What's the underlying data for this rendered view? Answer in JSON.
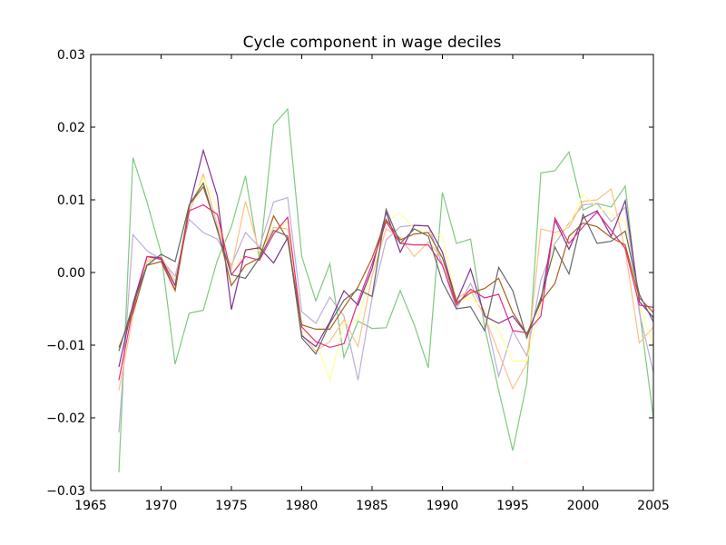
{
  "chart_data": {
    "type": "line",
    "title": "Cycle component in wage deciles",
    "xlabel": "",
    "ylabel": "",
    "xlim": [
      1965,
      2005
    ],
    "ylim": [
      -0.03,
      0.03
    ],
    "xticks": [
      1965,
      1970,
      1975,
      1980,
      1985,
      1990,
      1995,
      2000,
      2005
    ],
    "xtick_labels": [
      "1965",
      "1970",
      "1975",
      "1980",
      "1985",
      "1990",
      "1995",
      "2000",
      "2005"
    ],
    "yticks": [
      0.03,
      0.02,
      0.01,
      0.0,
      -0.01,
      -0.02,
      -0.03
    ],
    "ytick_labels": [
      "0.03",
      "0.02",
      "0.01",
      "0.00",
      "−0.01",
      "−0.02",
      "−0.03"
    ],
    "grid": false,
    "legend": "none",
    "x": [
      1967,
      1968,
      1969,
      1970,
      1971,
      1972,
      1973,
      1974,
      1975,
      1976,
      1977,
      1978,
      1979,
      1980,
      1981,
      1982,
      1983,
      1984,
      1985,
      1986,
      1987,
      1988,
      1989,
      1990,
      1991,
      1992,
      1993,
      1994,
      1995,
      1996,
      1997,
      1998,
      1999,
      2000,
      2001,
      2002,
      2003,
      2004,
      2005
    ],
    "series": [
      {
        "color": "#7fc97f",
        "values": [
          -0.0275,
          0.0158,
          0.0097,
          0.0027,
          -0.0126,
          -0.0056,
          -0.0052,
          0.0017,
          0.0063,
          0.0133,
          0.0017,
          0.0203,
          0.0225,
          0.0022,
          -0.0039,
          0.0012,
          -0.0117,
          -0.0067,
          -0.0077,
          -0.0076,
          -0.0025,
          -0.0072,
          -0.0131,
          0.011,
          0.004,
          0.0046,
          -0.0075,
          -0.0162,
          -0.0245,
          -0.0152,
          0.0137,
          0.014,
          0.0166,
          0.0086,
          0.0095,
          0.009,
          0.0119,
          -0.0051,
          -0.02
        ]
      },
      {
        "color": "#beaed4",
        "values": [
          -0.022,
          0.0052,
          0.003,
          0.0018,
          -0.0005,
          0.0073,
          0.0055,
          0.0046,
          0.001,
          0.0055,
          0.0035,
          0.0097,
          0.0103,
          -0.0054,
          -0.007,
          -0.0034,
          -0.006,
          -0.0148,
          -0.0035,
          0.0045,
          0.0063,
          0.0065,
          0.0064,
          0.001,
          -0.005,
          -0.0015,
          -0.0055,
          -0.0143,
          -0.008,
          -0.0115,
          -0.001,
          0.004,
          0.0068,
          0.0093,
          0.0095,
          0.007,
          0.009,
          -0.0055,
          -0.0138
        ]
      },
      {
        "color": "#fdc086",
        "values": [
          -0.0162,
          -0.006,
          0.0015,
          0.0022,
          -0.0012,
          0.0082,
          0.0135,
          0.0065,
          0.0005,
          0.0098,
          0.0028,
          0.0062,
          0.006,
          -0.0085,
          -0.0108,
          -0.0095,
          -0.0065,
          -0.0102,
          -0.0005,
          0.006,
          0.0048,
          0.0022,
          0.0042,
          0.002,
          -0.0035,
          -0.0025,
          -0.006,
          -0.011,
          -0.016,
          -0.0125,
          0.006,
          0.0055,
          0.0062,
          0.0098,
          0.01,
          0.0115,
          0.003,
          -0.0097,
          -0.0075
        ]
      },
      {
        "color": "#ffff99",
        "values": [
          -0.015,
          -0.0048,
          0.0018,
          0.002,
          -0.0018,
          0.009,
          0.013,
          0.009,
          -0.0005,
          0.003,
          0.003,
          0.0055,
          0.007,
          -0.008,
          -0.0095,
          -0.0148,
          -0.007,
          -0.0065,
          0.0005,
          0.007,
          0.0082,
          0.006,
          0.0055,
          0.005,
          -0.004,
          -0.0035,
          -0.005,
          -0.008,
          -0.0122,
          -0.0122,
          -0.0045,
          0.005,
          0.0065,
          0.0108,
          0.009,
          0.008,
          0.007,
          -0.0045,
          -0.01
        ]
      },
      {
        "color": "#7b3294",
        "values": [
          -0.013,
          -0.0043,
          0.0022,
          0.002,
          -0.0018,
          0.009,
          0.0168,
          0.0105,
          -0.0051,
          0.0031,
          0.0034,
          0.0013,
          0.0048,
          -0.0087,
          -0.0102,
          -0.0068,
          -0.0025,
          -0.0045,
          0.0005,
          0.0083,
          0.0028,
          0.0065,
          0.0064,
          0.0028,
          -0.004,
          0.0005,
          -0.006,
          -0.007,
          -0.006,
          -0.0085,
          -0.004,
          0.0072,
          0.0032,
          0.0075,
          0.0085,
          0.005,
          0.0099,
          -0.004,
          -0.0062
        ]
      },
      {
        "color": "#e7298a",
        "values": [
          -0.0148,
          -0.005,
          0.0022,
          0.0018,
          -0.0024,
          0.0085,
          0.0093,
          0.008,
          -0.0003,
          0.0022,
          0.0017,
          0.0053,
          0.0076,
          -0.0075,
          -0.0095,
          -0.0103,
          -0.0098,
          -0.004,
          0.0012,
          0.007,
          0.004,
          0.0038,
          0.0038,
          0.001,
          -0.0045,
          -0.0023,
          -0.0035,
          -0.003,
          -0.008,
          -0.0083,
          -0.006,
          0.0075,
          0.004,
          0.0063,
          0.0083,
          0.0058,
          0.0033,
          -0.0045,
          -0.0048
        ]
      },
      {
        "color": "#a6611a",
        "values": [
          -0.0103,
          -0.0055,
          0.001,
          0.0015,
          -0.0025,
          0.0093,
          0.0118,
          0.006,
          -0.0018,
          0.001,
          0.002,
          0.0078,
          0.0045,
          -0.0072,
          -0.0078,
          -0.0078,
          -0.0048,
          -0.002,
          0.002,
          0.0073,
          0.0045,
          0.0053,
          0.0055,
          0.002,
          -0.0042,
          -0.0028,
          -0.0022,
          -0.0008,
          -0.0055,
          -0.0085,
          -0.004,
          -0.0015,
          0.005,
          0.0068,
          0.0063,
          0.0048,
          0.0038,
          -0.0035,
          -0.0055
        ]
      },
      {
        "color": "#666666",
        "values": [
          -0.0108,
          -0.0045,
          0.001,
          0.0025,
          0.0015,
          0.0093,
          0.0123,
          0.0058,
          -0.0003,
          -0.0008,
          0.002,
          0.0058,
          0.005,
          -0.009,
          -0.0112,
          -0.007,
          -0.0038,
          -0.0023,
          -0.0033,
          0.0087,
          0.004,
          0.006,
          0.005,
          -0.0013,
          -0.005,
          -0.0047,
          -0.008,
          0.0007,
          -0.0025,
          -0.009,
          -0.0035,
          0.0035,
          -0.0002,
          0.008,
          0.004,
          0.0043,
          0.0057,
          -0.003,
          -0.0068
        ]
      }
    ]
  }
}
